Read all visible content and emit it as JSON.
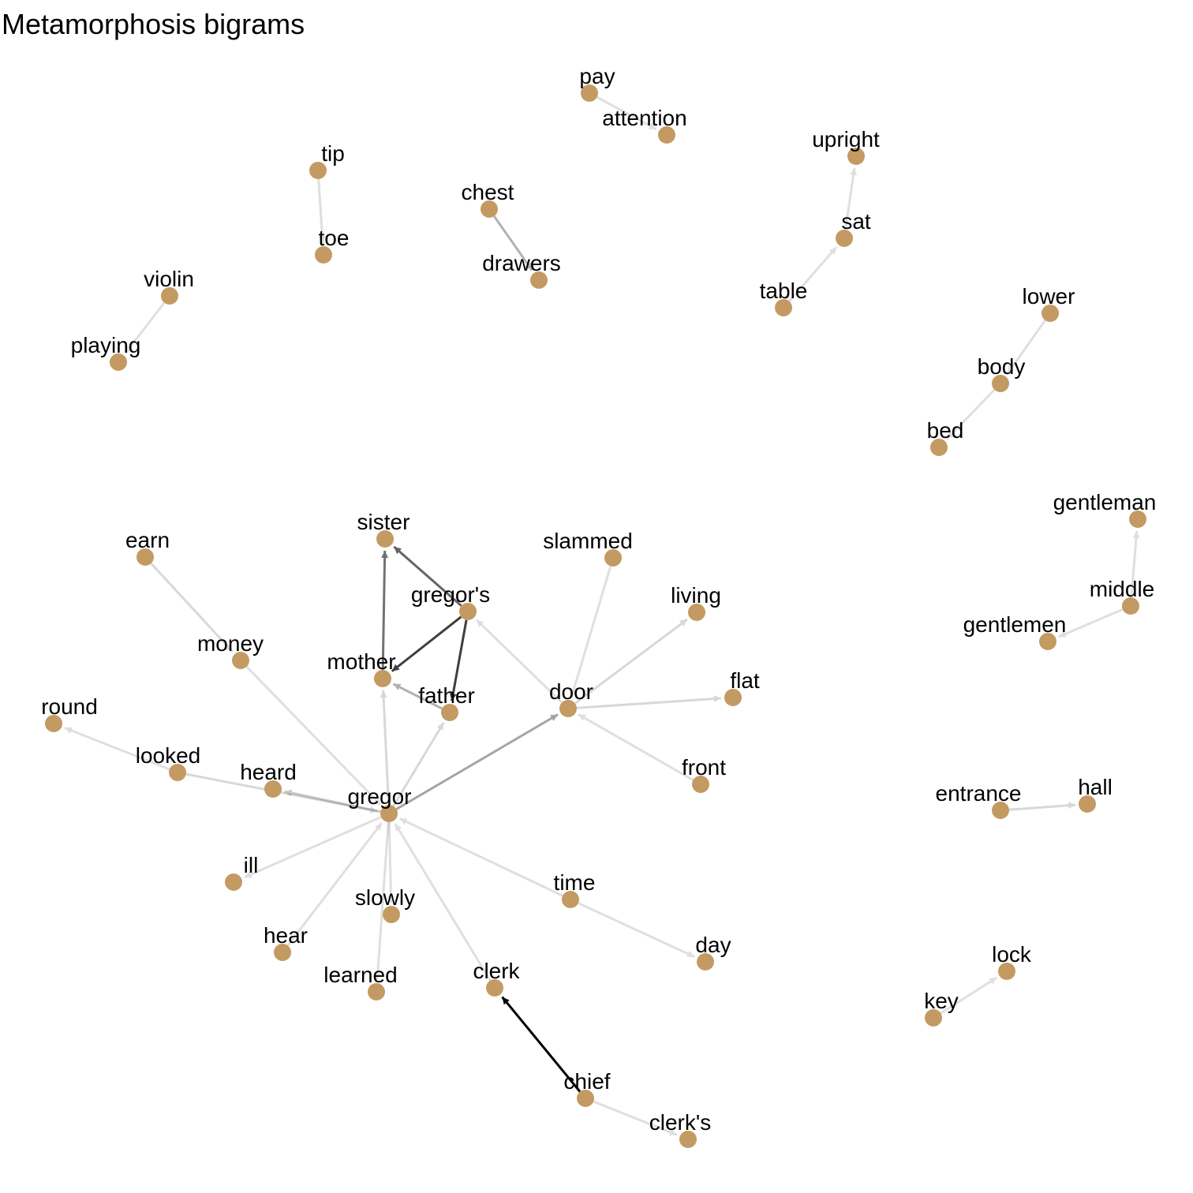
{
  "title": "Metamorphosis bigrams",
  "colors": {
    "node": "#C49A63",
    "edge": "#000000",
    "label": "#000000"
  },
  "graph": {
    "nodes": [
      {
        "id": "pay",
        "label": "pay"
      },
      {
        "id": "attention",
        "label": "attention"
      },
      {
        "id": "tip",
        "label": "tip"
      },
      {
        "id": "toe",
        "label": "toe"
      },
      {
        "id": "chest",
        "label": "chest"
      },
      {
        "id": "drawers",
        "label": "drawers"
      },
      {
        "id": "upright",
        "label": "upright"
      },
      {
        "id": "sat",
        "label": "sat"
      },
      {
        "id": "table",
        "label": "table"
      },
      {
        "id": "violin",
        "label": "violin"
      },
      {
        "id": "playing",
        "label": "playing"
      },
      {
        "id": "lower",
        "label": "lower"
      },
      {
        "id": "body",
        "label": "body"
      },
      {
        "id": "bed",
        "label": "bed"
      },
      {
        "id": "gentleman",
        "label": "gentleman"
      },
      {
        "id": "middle",
        "label": "middle"
      },
      {
        "id": "gentlemen",
        "label": "gentlemen"
      },
      {
        "id": "sister",
        "label": "sister"
      },
      {
        "id": "earn",
        "label": "earn"
      },
      {
        "id": "slammed",
        "label": "slammed"
      },
      {
        "id": "gregors",
        "label": "gregor's"
      },
      {
        "id": "living",
        "label": "living"
      },
      {
        "id": "money",
        "label": "money"
      },
      {
        "id": "mother",
        "label": "mother"
      },
      {
        "id": "father",
        "label": "father"
      },
      {
        "id": "door",
        "label": "door"
      },
      {
        "id": "flat",
        "label": "flat"
      },
      {
        "id": "round",
        "label": "round"
      },
      {
        "id": "looked",
        "label": "looked"
      },
      {
        "id": "heard",
        "label": "heard"
      },
      {
        "id": "gregor",
        "label": "gregor"
      },
      {
        "id": "front",
        "label": "front"
      },
      {
        "id": "entrance",
        "label": "entrance"
      },
      {
        "id": "hall",
        "label": "hall"
      },
      {
        "id": "ill",
        "label": "ill"
      },
      {
        "id": "time",
        "label": "time"
      },
      {
        "id": "slowly",
        "label": "slowly"
      },
      {
        "id": "hear",
        "label": "hear"
      },
      {
        "id": "day",
        "label": "day"
      },
      {
        "id": "lock",
        "label": "lock"
      },
      {
        "id": "learned",
        "label": "learned"
      },
      {
        "id": "clerk",
        "label": "clerk"
      },
      {
        "id": "key",
        "label": "key"
      },
      {
        "id": "chief",
        "label": "chief"
      },
      {
        "id": "clerks",
        "label": "clerk's"
      }
    ],
    "edges": [
      {
        "from": "pay",
        "to": "attention",
        "strength": 0.12
      },
      {
        "from": "tip",
        "to": "toe",
        "strength": 0.12
      },
      {
        "from": "chest",
        "to": "drawers",
        "strength": 0.3
      },
      {
        "from": "table",
        "to": "sat",
        "strength": 0.12
      },
      {
        "from": "sat",
        "to": "upright",
        "strength": 0.12
      },
      {
        "from": "violin",
        "to": "playing",
        "strength": 0.12
      },
      {
        "from": "lower",
        "to": "body",
        "strength": 0.12
      },
      {
        "from": "body",
        "to": "bed",
        "strength": 0.12
      },
      {
        "from": "middle",
        "to": "gentleman",
        "strength": 0.12
      },
      {
        "from": "middle",
        "to": "gentlemen",
        "strength": 0.12
      },
      {
        "from": "gregors",
        "to": "sister",
        "strength": 0.6
      },
      {
        "from": "gregors",
        "to": "mother",
        "strength": 0.75
      },
      {
        "from": "gregors",
        "to": "father",
        "strength": 0.75
      },
      {
        "from": "mother",
        "to": "sister",
        "strength": 0.55
      },
      {
        "from": "father",
        "to": "mother",
        "strength": 0.3
      },
      {
        "from": "earn",
        "to": "money",
        "strength": 0.15
      },
      {
        "from": "money",
        "to": "gregor",
        "strength": 0.12
      },
      {
        "from": "gregor",
        "to": "mother",
        "strength": 0.15
      },
      {
        "from": "gregor",
        "to": "father",
        "strength": 0.15
      },
      {
        "from": "gregor",
        "to": "door",
        "strength": 0.35
      },
      {
        "from": "gregor",
        "to": "heard",
        "strength": 0.2
      },
      {
        "from": "gregor",
        "to": "ill",
        "strength": 0.12
      },
      {
        "from": "gregor",
        "to": "slowly",
        "strength": 0.12
      },
      {
        "from": "gregor",
        "to": "learned",
        "strength": 0.12
      },
      {
        "from": "looked",
        "to": "round",
        "strength": 0.12
      },
      {
        "from": "looked",
        "to": "gregor",
        "strength": 0.15
      },
      {
        "from": "hear",
        "to": "gregor",
        "strength": 0.12
      },
      {
        "from": "clerk",
        "to": "gregor",
        "strength": 0.12
      },
      {
        "from": "time",
        "to": "gregor",
        "strength": 0.12
      },
      {
        "from": "time",
        "to": "day",
        "strength": 0.12
      },
      {
        "from": "door",
        "to": "gregors",
        "strength": 0.12
      },
      {
        "from": "door",
        "to": "living",
        "strength": 0.15
      },
      {
        "from": "door",
        "to": "flat",
        "strength": 0.15
      },
      {
        "from": "slammed",
        "to": "door",
        "strength": 0.12
      },
      {
        "from": "front",
        "to": "door",
        "strength": 0.12
      },
      {
        "from": "entrance",
        "to": "hall",
        "strength": 0.15
      },
      {
        "from": "key",
        "to": "lock",
        "strength": 0.12
      },
      {
        "from": "chief",
        "to": "clerk",
        "strength": 1.0
      },
      {
        "from": "chief",
        "to": "clerks",
        "strength": 0.12
      }
    ]
  }
}
